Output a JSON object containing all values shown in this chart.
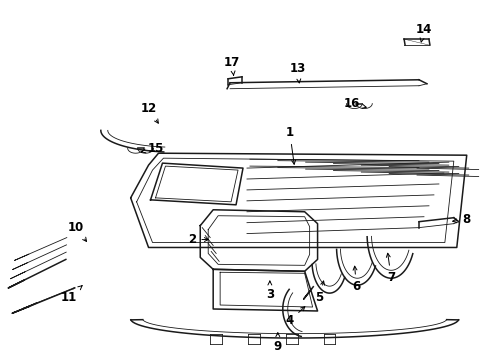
{
  "background_color": "#ffffff",
  "line_color": "#1a1a1a",
  "figsize": [
    4.89,
    3.6
  ],
  "dpi": 100,
  "lw_thick": 1.1,
  "lw_thin": 0.6,
  "fs": 8.5
}
